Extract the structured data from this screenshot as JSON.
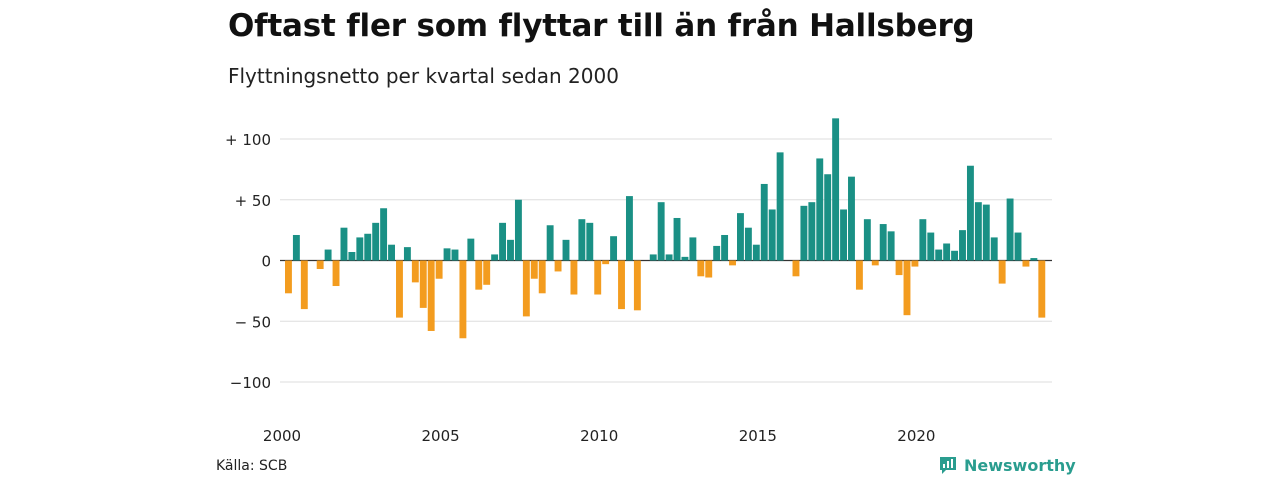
{
  "title": "Oftast fler som flyttar till än från Hallsberg",
  "subtitle": "Flyttningsnetto per kvartal sedan 2000",
  "source": "Källa: SCB",
  "brand": "Newsworthy",
  "colors": {
    "positive": "#1a9085",
    "negative": "#f39c1f",
    "grid": "#dddddd",
    "brand": "#2a9d8f"
  },
  "icons": {
    "brand_logo": "bar-chart-speech-bubble-icon"
  },
  "chart_data": {
    "type": "bar",
    "title": "Oftast fler som flyttar till än från Hallsberg",
    "subtitle": "Flyttningsnetto per kvartal sedan 2000",
    "xlabel": "",
    "ylabel": "",
    "ylim": [
      -110,
      120
    ],
    "yticks": [
      {
        "value": 100,
        "label": "+ 100"
      },
      {
        "value": 50,
        "label": "+  50"
      },
      {
        "value": 0,
        "label": "0"
      },
      {
        "value": -50,
        "label": "− 50"
      },
      {
        "value": -100,
        "label": "−100"
      }
    ],
    "xticks": [
      {
        "value": 2000,
        "label": "2000"
      },
      {
        "value": 2005,
        "label": "2005"
      },
      {
        "value": 2010,
        "label": "2010"
      },
      {
        "value": 2015,
        "label": "2015"
      },
      {
        "value": 2020,
        "label": "2020"
      }
    ],
    "start_year": 2000,
    "grid": true,
    "legend": "none",
    "values": [
      -27,
      21,
      -40,
      0,
      -7,
      9,
      -21,
      27,
      7,
      19,
      22,
      31,
      43,
      13,
      -47,
      11,
      -18,
      -39,
      -58,
      -15,
      10,
      9,
      -64,
      18,
      -24,
      -20,
      5,
      31,
      17,
      50,
      -46,
      -15,
      -27,
      29,
      -9,
      17,
      -28,
      34,
      31,
      -28,
      -3,
      20,
      -40,
      53,
      -41,
      0,
      5,
      48,
      5,
      35,
      3,
      19,
      -13,
      -14,
      12,
      21,
      -4,
      39,
      27,
      13,
      63,
      42,
      89,
      0,
      -13,
      45,
      48,
      84,
      71,
      117,
      42,
      69,
      -24,
      34,
      -4,
      30,
      24,
      -12,
      -45,
      -5,
      34,
      23,
      9,
      14,
      8,
      25,
      78,
      48,
      46,
      19,
      -19,
      51,
      23,
      -5,
      2,
      -47
    ]
  }
}
